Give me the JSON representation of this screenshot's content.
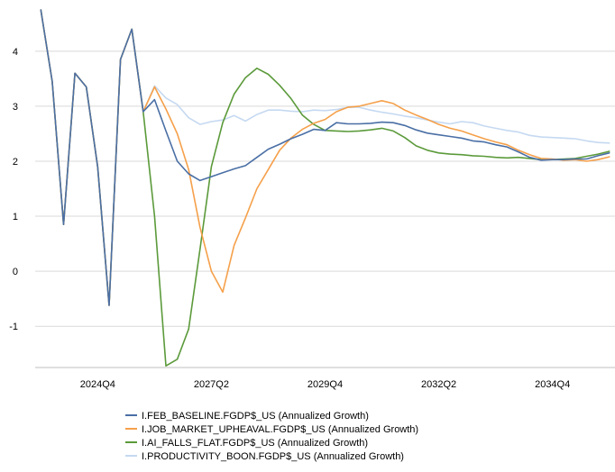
{
  "chart_data": {
    "type": "line",
    "title": "",
    "xlabel": "",
    "ylabel": "",
    "x_tick_labels": [
      "2024Q4",
      "2027Q2",
      "2029Q4",
      "2032Q2",
      "2034Q4"
    ],
    "x_tick_indices": [
      5,
      15,
      25,
      35,
      45
    ],
    "y_ticks": [
      -1,
      0,
      1,
      2,
      3,
      4
    ],
    "ylim": [
      -1.75,
      4.8
    ],
    "x_range": [
      -0.5,
      50.5
    ],
    "grid": "horizontal",
    "legend_position": "bottom",
    "series": [
      {
        "name": "I.FEB_BASELINE.FGDP$_US (Annualized Growth)",
        "color": "#4a6fa5",
        "values": [
          4.75,
          3.45,
          0.85,
          3.6,
          3.35,
          1.9,
          -0.62,
          3.85,
          4.4,
          2.9,
          3.12,
          2.55,
          2.0,
          1.77,
          1.65,
          1.72,
          1.79,
          1.86,
          1.92,
          2.07,
          2.22,
          2.31,
          2.41,
          2.49,
          2.58,
          2.56,
          2.7,
          2.68,
          2.68,
          2.69,
          2.71,
          2.7,
          2.65,
          2.57,
          2.51,
          2.48,
          2.45,
          2.42,
          2.37,
          2.35,
          2.3,
          2.26,
          2.17,
          2.07,
          2.02,
          2.03,
          2.03,
          2.04,
          2.04,
          2.1,
          2.15
        ]
      },
      {
        "name": "I.JOB_MARKET_UPHEAVAL.FGDP$_US (Annualized Growth)",
        "color": "#f5a04a",
        "values": [
          4.75,
          3.45,
          0.85,
          3.6,
          3.35,
          1.9,
          -0.62,
          3.85,
          4.4,
          2.9,
          3.35,
          2.95,
          2.5,
          1.85,
          0.8,
          0.0,
          -0.38,
          0.47,
          0.97,
          1.5,
          1.85,
          2.2,
          2.42,
          2.58,
          2.69,
          2.76,
          2.9,
          2.98,
          3.0,
          3.05,
          3.1,
          3.05,
          2.93,
          2.84,
          2.76,
          2.67,
          2.6,
          2.55,
          2.48,
          2.41,
          2.35,
          2.3,
          2.2,
          2.12,
          2.05,
          2.04,
          2.02,
          2.03,
          2.0,
          2.03,
          2.08
        ]
      },
      {
        "name": "I.AI_FALLS_FLAT.FGDP$_US (Annualized Growth)",
        "color": "#5b9a3a",
        "values": [
          4.75,
          3.45,
          0.85,
          3.6,
          3.35,
          1.9,
          -0.62,
          3.85,
          4.4,
          2.9,
          1.0,
          -1.72,
          -1.6,
          -1.05,
          0.4,
          1.9,
          2.7,
          3.22,
          3.52,
          3.69,
          3.58,
          3.38,
          3.14,
          2.84,
          2.67,
          2.56,
          2.55,
          2.54,
          2.55,
          2.57,
          2.6,
          2.55,
          2.43,
          2.28,
          2.2,
          2.15,
          2.13,
          2.12,
          2.1,
          2.09,
          2.07,
          2.06,
          2.07,
          2.05,
          2.03,
          2.03,
          2.04,
          2.05,
          2.09,
          2.13,
          2.18
        ]
      },
      {
        "name": "I.PRODUCTIVITY_BOON.FGDP$_US (Annualized Growth)",
        "color": "#c5d9f1",
        "values": [
          4.75,
          3.45,
          0.85,
          3.6,
          3.35,
          1.9,
          -0.62,
          3.85,
          4.4,
          2.9,
          3.37,
          3.15,
          3.03,
          2.79,
          2.67,
          2.72,
          2.75,
          2.83,
          2.73,
          2.85,
          2.93,
          2.93,
          2.91,
          2.9,
          2.93,
          2.92,
          2.94,
          2.98,
          2.98,
          2.93,
          2.89,
          2.86,
          2.82,
          2.79,
          2.75,
          2.71,
          2.68,
          2.72,
          2.7,
          2.64,
          2.6,
          2.56,
          2.53,
          2.47,
          2.44,
          2.43,
          2.42,
          2.41,
          2.37,
          2.34,
          2.33
        ]
      }
    ]
  }
}
